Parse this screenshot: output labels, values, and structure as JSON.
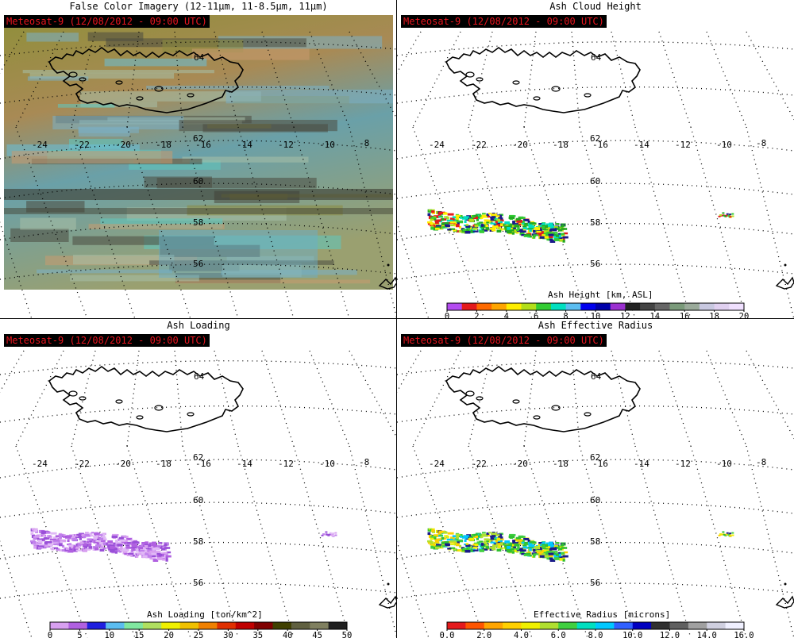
{
  "badge_text": "Meteosat-9  (12/08/2012 - 09:00 UTC)",
  "panels": [
    {
      "title": "False Color Imagery (12-11μm, 11-8.5μm, 11μm)",
      "badge": "Meteosat-9  (12/08/2012 - 09:00 UTC)"
    },
    {
      "title": "Ash Cloud Height",
      "badge": "Meteosat-9  (12/08/2012 - 09:00 UTC)"
    },
    {
      "title": "Ash Loading",
      "badge": "Meteosat-9  (12/08/2012 - 09:00 UTC)"
    },
    {
      "title": "Ash Effective Radius",
      "badge": "Meteosat-9  (12/08/2012 - 09:00 UTC)"
    }
  ],
  "grid_labels": {
    "lat_top": "62",
    "lons_top": [
      "-24",
      "-22",
      "-20",
      "-18",
      "-16",
      "-14",
      "-12",
      "-10",
      "-8"
    ],
    "lats_center": [
      "60",
      "58",
      "56"
    ],
    "lat_top_hidden": "64"
  },
  "colorbars": [
    {
      "title": "Ash Height [km, ASL]",
      "ticks": [
        "0",
        "2",
        "4",
        "6",
        "8",
        "10",
        "12",
        "14",
        "16",
        "18",
        "20"
      ],
      "colors": [
        "#b44cf0",
        "#e41a1c",
        "#ff6a00",
        "#ffa500",
        "#ffee00",
        "#b2df1a",
        "#33cc33",
        "#00e0c0",
        "#5bbdf0",
        "#0000ee",
        "#0000aa",
        "#9b30d0",
        "#222222",
        "#444444",
        "#666666",
        "#7a9a7a",
        "#9aaa9a",
        "#c8c8e0",
        "#e0d0f0",
        "#f0e0ff"
      ]
    },
    {
      "title": "Ash Loading [ton/km^2]",
      "ticks": [
        "0",
        "5",
        "10",
        "15",
        "20",
        "25",
        "30",
        "35",
        "40",
        "45",
        "50"
      ],
      "colors": [
        "#d8a0f0",
        "#b060e0",
        "#2020e0",
        "#5bbdf0",
        "#80e8a0",
        "#b0e060",
        "#f0f000",
        "#f0c000",
        "#f08000",
        "#e03000",
        "#c00000",
        "#800000",
        "#404000",
        "#606040",
        "#808060",
        "#202020"
      ]
    },
    {
      "title": "Effective Radius [microns]",
      "ticks": [
        "0.0",
        "2.0",
        "4.0",
        "6.0",
        "8.0",
        "10.0",
        "12.0",
        "14.0",
        "16.0"
      ],
      "colors": [
        "#e41a1c",
        "#ff5500",
        "#ffa500",
        "#ffd000",
        "#f0f000",
        "#b0e030",
        "#40d040",
        "#00e0c0",
        "#00c8ff",
        "#3060ff",
        "#0000c0",
        "#303030",
        "#606060",
        "#a0a0a0",
        "#d0d0e0",
        "#f0f0ff"
      ]
    }
  ]
}
